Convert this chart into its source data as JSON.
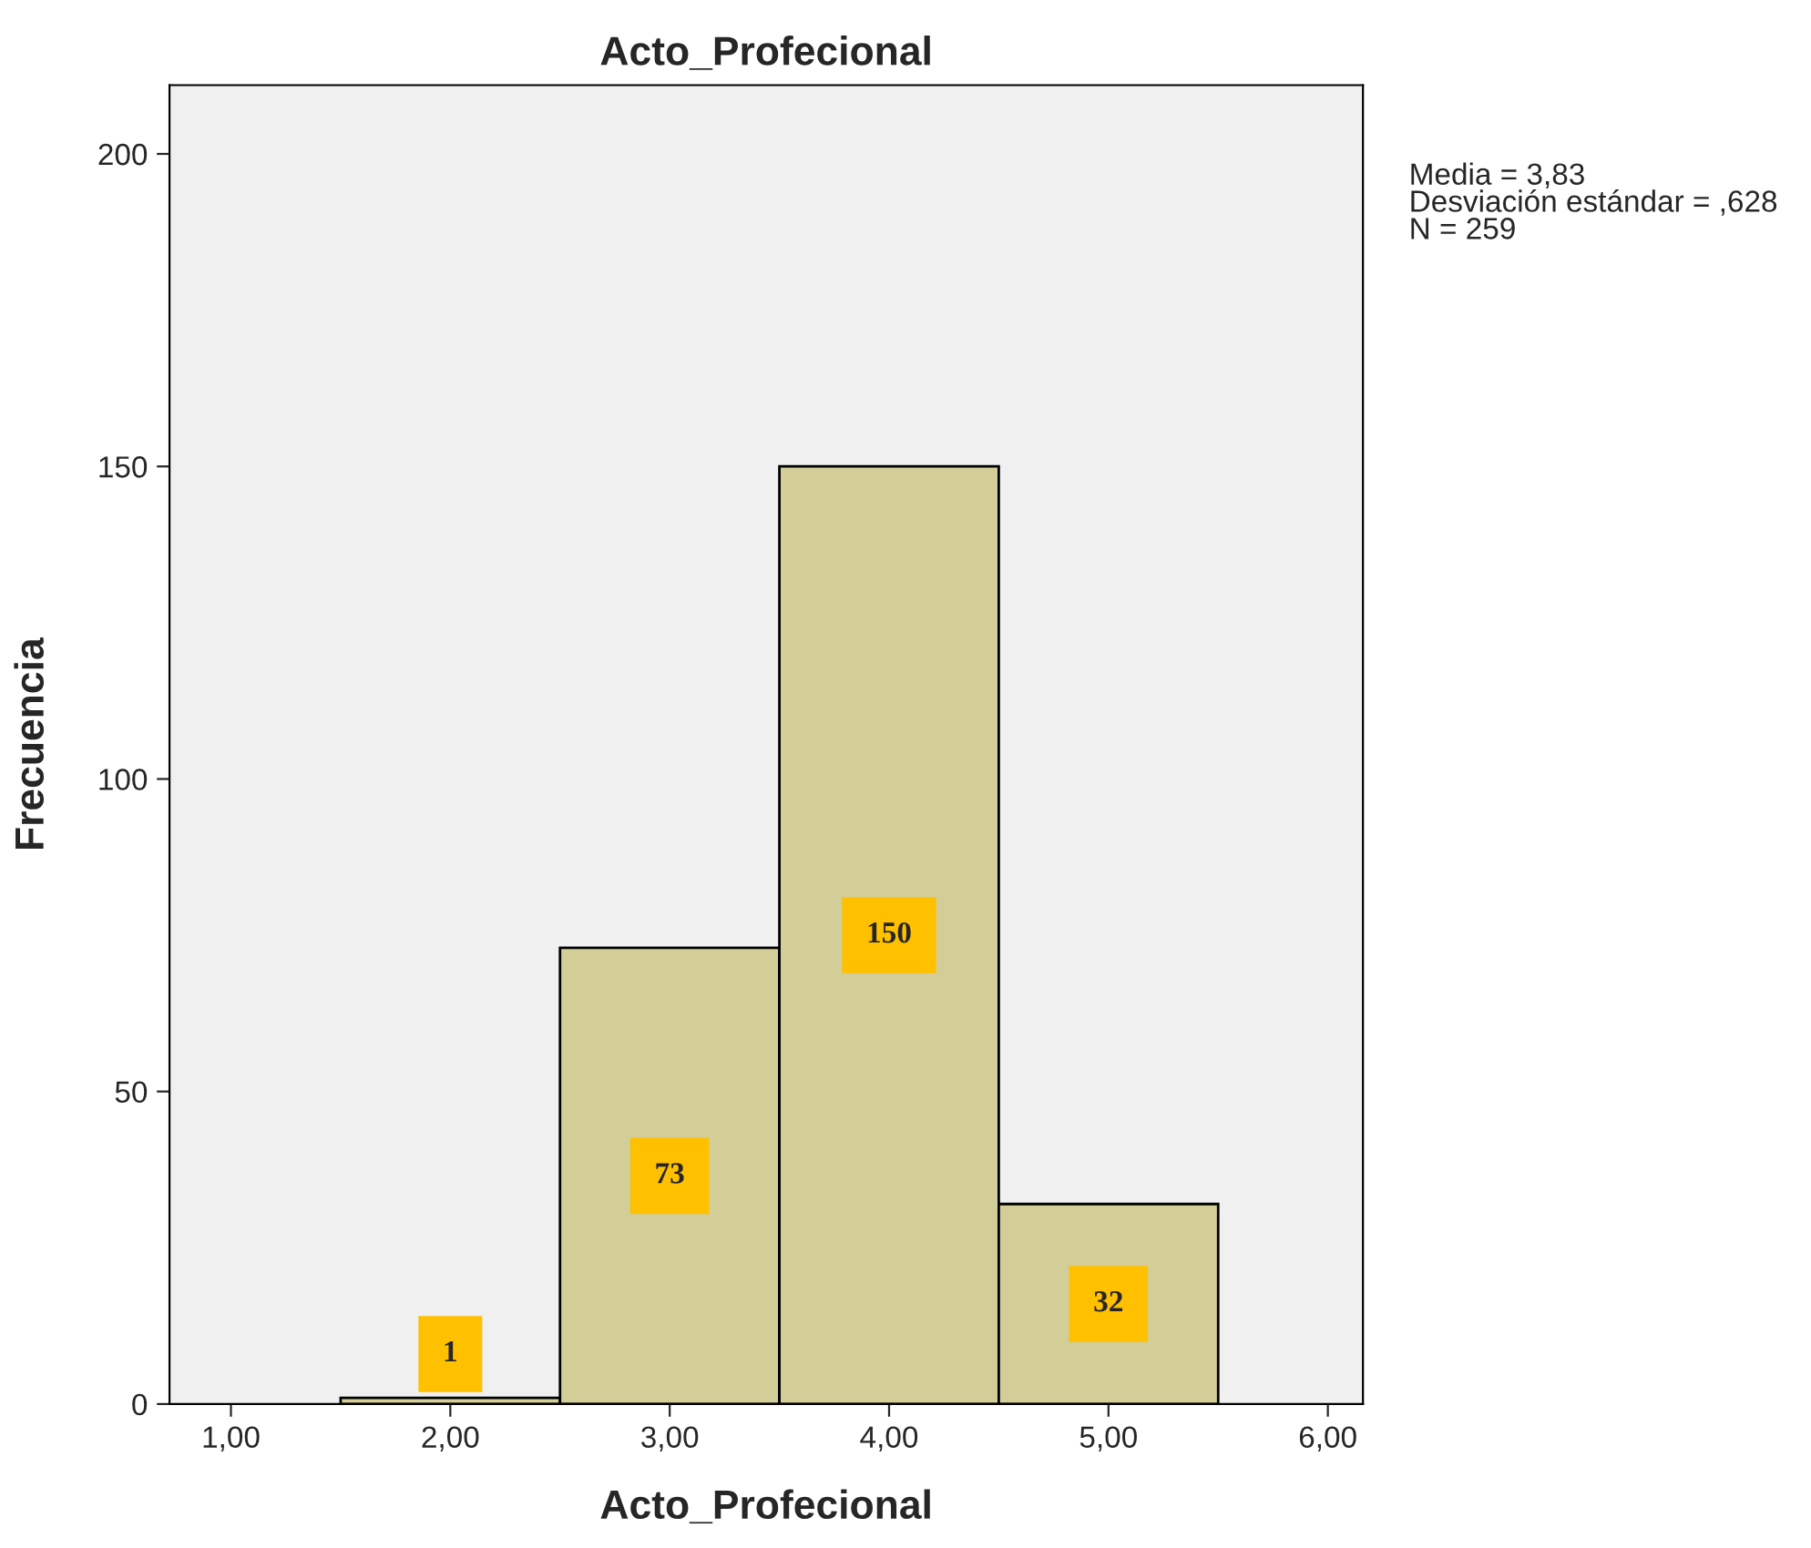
{
  "chart_data": {
    "type": "histogram",
    "title": "Acto_Profecional",
    "xlabel": "Acto_Profecional",
    "ylabel": "Frecuencia",
    "bins": [
      1.5,
      2.5,
      3.5,
      4.5,
      5.5
    ],
    "values": [
      1,
      73,
      150,
      32
    ],
    "value_labels": [
      "1",
      "73",
      "150",
      "32"
    ],
    "color": "#d3ce97",
    "xlim": [
      0.72,
      6.16
    ],
    "xticks": [
      {
        "value": 1,
        "label": "1,00"
      },
      {
        "value": 2,
        "label": "2,00"
      },
      {
        "value": 3,
        "label": "3,00"
      },
      {
        "value": 4,
        "label": "4,00"
      },
      {
        "value": 5,
        "label": "5,00"
      },
      {
        "value": 6,
        "label": "6,00"
      }
    ],
    "ylim": [
      0,
      211
    ],
    "yticks": [
      0,
      50,
      100,
      150,
      200
    ],
    "annotations": [
      "Media = 3,83\nDesviación estándar = ,628\nN = 259"
    ],
    "grid": false
  }
}
